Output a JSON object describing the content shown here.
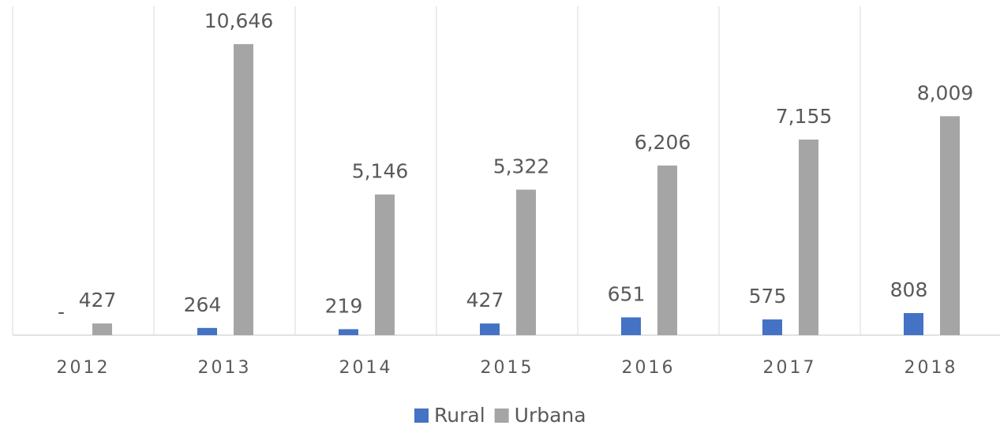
{
  "chart_data": {
    "type": "bar",
    "categories": [
      "2012",
      "2013",
      "2014",
      "2015",
      "2016",
      "2017",
      "2018"
    ],
    "series": [
      {
        "name": "Rural",
        "color": "#4472c4",
        "values": [
          0,
          264,
          219,
          427,
          651,
          575,
          808
        ],
        "value_labels": [
          "-",
          "264",
          "219",
          "427",
          "651",
          "575",
          "808"
        ]
      },
      {
        "name": "Urbana",
        "color": "#a5a5a5",
        "values": [
          427,
          10646,
          5146,
          5322,
          6206,
          7155,
          8009
        ],
        "value_labels": [
          "427",
          "10,646",
          "5,146",
          "5,322",
          "6,206",
          "7,155",
          "8,009"
        ]
      }
    ],
    "ylim": [
      0,
      12000
    ],
    "legend": "bottom"
  }
}
